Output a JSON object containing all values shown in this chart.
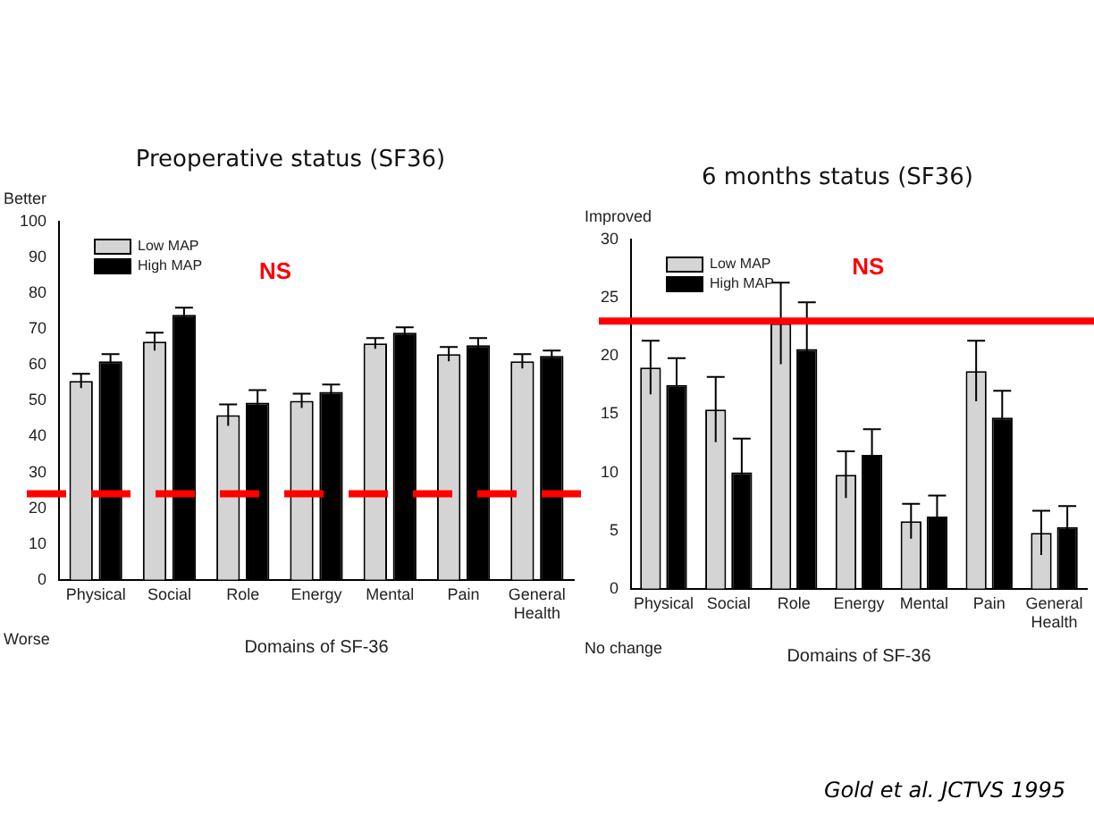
{
  "chart_data": [
    {
      "type": "bar",
      "title": "Preoperative status (SF36)",
      "xlabel": "Domains of SF-36",
      "categories": [
        "Physical",
        "Social",
        "Role",
        "Energy",
        "Mental",
        "Pain",
        "General Health"
      ],
      "series": [
        {
          "name": "Low MAP",
          "color": "#d4d4d4",
          "values": [
            55.5,
            66.5,
            46,
            50,
            66,
            63,
            61
          ],
          "errors": [
            2,
            2.5,
            3,
            2,
            1.5,
            2,
            2
          ]
        },
        {
          "name": "High MAP",
          "color": "#000000",
          "values": [
            61,
            74,
            49.5,
            52.5,
            69,
            65.5,
            62.5
          ],
          "errors": [
            2,
            2,
            3.5,
            2,
            1.5,
            2,
            1.5
          ]
        }
      ],
      "ylim": [
        0,
        100
      ],
      "yticks": [
        0,
        10,
        20,
        30,
        40,
        50,
        60,
        70,
        80,
        90,
        100
      ],
      "grid": false,
      "legend": "top left",
      "ref_lines": [
        {
          "axis": "y",
          "value": 24,
          "color": "#ff0000",
          "line_style": "dashed"
        }
      ],
      "annotations": [
        "Better",
        "Worse",
        "NS"
      ]
    },
    {
      "type": "bar",
      "title": "6 months status (SF36)",
      "xlabel": "Domains of SF-36",
      "categories": [
        "Physical",
        "Social",
        "Role",
        "Energy",
        "Mental",
        "Pain",
        "General Health"
      ],
      "series": [
        {
          "name": "Low MAP",
          "color": "#d4d4d4",
          "values": [
            19,
            15.4,
            22.8,
            9.8,
            5.8,
            18.7,
            4.8
          ],
          "errors": [
            2.3,
            2.8,
            3.5,
            2,
            1.5,
            2.6,
            1.9
          ]
        },
        {
          "name": "High MAP",
          "color": "#000000",
          "values": [
            17.5,
            10,
            20.6,
            11.5,
            6.2,
            14.7,
            5.3
          ],
          "errors": [
            2.3,
            2.9,
            4,
            2.2,
            1.8,
            2.3,
            1.8
          ]
        }
      ],
      "ylim": [
        0,
        30
      ],
      "yticks": [
        0,
        5,
        10,
        15,
        20,
        25,
        30
      ],
      "grid": false,
      "legend": "top left",
      "ref_lines": [
        {
          "axis": "y",
          "value": 23,
          "color": "#ff0000",
          "line_style": "solid"
        }
      ],
      "annotations": [
        "Improved",
        "No change",
        "NS",
        "Gold et al. JCTVS 1995"
      ]
    }
  ]
}
